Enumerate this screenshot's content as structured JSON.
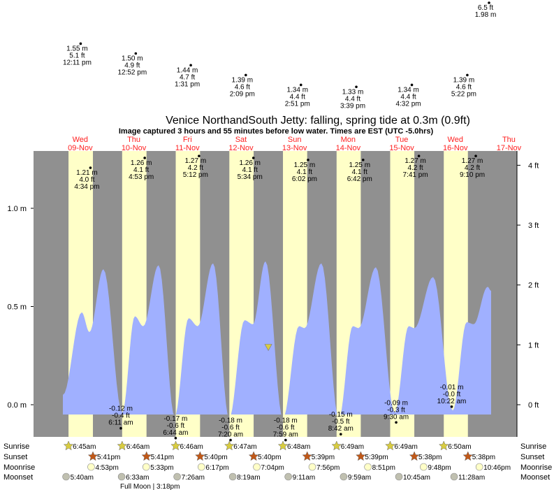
{
  "chart_data": {
    "type": "area",
    "title": "Venice NorthandSouth Jetty: falling, spring tide at 0.3m (0.9ft)",
    "subtitle": "Image captured 3 hours and 55 minutes before low water. Times are EST (UTC -5.0hrs)",
    "days": [
      {
        "dow": "Wed",
        "date": "09-Nov"
      },
      {
        "dow": "Thu",
        "date": "10-Nov"
      },
      {
        "dow": "Fri",
        "date": "11-Nov"
      },
      {
        "dow": "Sat",
        "date": "12-Nov"
      },
      {
        "dow": "Sun",
        "date": "13-Nov"
      },
      {
        "dow": "Mon",
        "date": "14-Nov"
      },
      {
        "dow": "Tue",
        "date": "15-Nov"
      },
      {
        "dow": "Wed",
        "date": "16-Nov"
      },
      {
        "dow": "Thu",
        "date": "17-Nov"
      }
    ],
    "left_axis": {
      "unit": "m",
      "ticks": [
        "0.0 m",
        "0.5 m",
        "1.0 m"
      ],
      "values": [
        0,
        0.5,
        1.0
      ],
      "ylim": [
        -0.16,
        1.29
      ]
    },
    "right_axis": {
      "unit": "ft",
      "ticks": [
        "0 ft",
        "1 ft",
        "2 ft",
        "3 ft",
        "4 ft"
      ],
      "values": [
        0,
        1,
        2,
        3,
        4
      ]
    },
    "colors": {
      "night": "#909090",
      "day": "#ffffc8",
      "water": "#a0b0ff",
      "day_labels": "#ff2020",
      "sunrise": "#d8cc40",
      "sunset": "#c05818",
      "moonrise": "#ffffc8",
      "moonset": "#c0c0b0"
    },
    "curve": [
      [
        "09-Nov",
        "4:13 am",
        0.05
      ],
      [
        "09-Nov",
        "12:40 pm",
        0.47
      ],
      [
        "09-Nov",
        "4:06 pm",
        0.37
      ],
      [
        "09-Nov",
        "10:22 pm",
        0.69
      ],
      [
        "10-Nov",
        "6:49 am",
        -0.04
      ],
      [
        "10-Nov",
        "12:27 pm",
        0.45
      ],
      [
        "10-Nov",
        "4:12 pm",
        0.4
      ],
      [
        "10-Nov",
        "11:05 pm",
        0.71
      ],
      [
        "11-Nov",
        "6:17 am",
        -0.06
      ],
      [
        "11-Nov",
        "12:33 pm",
        0.44
      ],
      [
        "11-Nov",
        "4:37 pm",
        0.4
      ],
      [
        "11-Nov",
        "11:30 pm",
        0.72
      ],
      [
        "12-Nov",
        "6:42 am",
        -0.07
      ],
      [
        "12-Nov",
        "1:35 pm",
        0.43
      ],
      [
        "12-Nov",
        "5:20 pm",
        0.41
      ],
      [
        "12-Nov",
        "10:58 pm",
        0.73
      ],
      [
        "13-Nov",
        "6:48 am",
        -0.07
      ],
      [
        "13-Nov",
        "2:00 pm",
        0.4
      ],
      [
        "13-Nov",
        "4:30 pm",
        0.39
      ],
      [
        "14-Nov",
        "12:00 am",
        0.72
      ],
      [
        "14-Nov",
        "7:50 am",
        -0.07
      ],
      [
        "14-Nov",
        "2:05 pm",
        0.4
      ],
      [
        "14-Nov",
        "4:40 pm",
        0.39
      ],
      [
        "15-Nov",
        "12:25 am",
        0.7
      ],
      [
        "15-Nov",
        "8:51 am",
        -0.04
      ],
      [
        "15-Nov",
        "3:07 pm",
        0.4
      ],
      [
        "15-Nov",
        "5:40 pm",
        0.39
      ],
      [
        "16-Nov",
        "2:04 am",
        0.65
      ],
      [
        "16-Nov",
        "10:50 am",
        -0.03
      ],
      [
        "16-Nov",
        "5:05 pm",
        0.42
      ],
      [
        "16-Nov",
        "8:12 pm",
        0.41
      ],
      [
        "17-Nov",
        "2:28 am",
        0.6
      ],
      [
        "17-Nov",
        "4:02 am",
        0.58
      ]
    ],
    "tide_labels": [
      {
        "day": "09-Nov",
        "time": "4:34 pm",
        "ft": "4.0 ft",
        "m": "1.21 m",
        "value": 1.21,
        "kind": "high"
      },
      {
        "day": "10-Nov",
        "time": "4:53 pm",
        "ft": "4.1 ft",
        "m": "1.26 m",
        "value": 1.26,
        "kind": "high"
      },
      {
        "day": "11-Nov",
        "time": "5:12 pm",
        "ft": "4.2 ft",
        "m": "1.27 m",
        "value": 1.27,
        "kind": "high"
      },
      {
        "day": "12-Nov",
        "time": "5:34 pm",
        "ft": "4.1 ft",
        "m": "1.26 m",
        "value": 1.26,
        "kind": "high"
      },
      {
        "day": "13-Nov",
        "time": "6:02 pm",
        "ft": "4.1 ft",
        "m": "1.25 m",
        "value": 1.25,
        "kind": "high"
      },
      {
        "day": "14-Nov",
        "time": "6:42 pm",
        "ft": "4.1 ft",
        "m": "1.25 m",
        "value": 1.25,
        "kind": "high"
      },
      {
        "day": "15-Nov",
        "time": "7:41 pm",
        "ft": "4.2 ft",
        "m": "1.27 m",
        "value": 1.27,
        "kind": "high"
      },
      {
        "day": "16-Nov",
        "time": "9:10 pm",
        "ft": "4.2 ft",
        "m": "1.27 m",
        "value": 1.27,
        "kind": "high"
      },
      {
        "day": "09-Nov",
        "time": "12:11 pm",
        "ft": "5.1 ft",
        "m": "1.55 m",
        "value": 1.55,
        "kind": "high"
      },
      {
        "day": "10-Nov",
        "time": "12:52 pm",
        "ft": "4.9 ft",
        "m": "1.50 m",
        "value": 1.5,
        "kind": "high"
      },
      {
        "day": "11-Nov",
        "time": "1:31 pm",
        "ft": "4.7 ft",
        "m": "1.44 m",
        "value": 1.44,
        "kind": "high"
      },
      {
        "day": "12-Nov",
        "time": "2:09 pm",
        "ft": "4.6 ft",
        "m": "1.39 m",
        "value": 1.39,
        "kind": "high"
      },
      {
        "day": "13-Nov",
        "time": "2:51 pm",
        "ft": "4.4 ft",
        "m": "1.34 m",
        "value": 1.34,
        "kind": "high"
      },
      {
        "day": "14-Nov",
        "time": "3:39 pm",
        "ft": "4.4 ft",
        "m": "1.33 m",
        "value": 1.33,
        "kind": "high"
      },
      {
        "day": "15-Nov",
        "time": "4:32 pm",
        "ft": "4.4 ft",
        "m": "1.34 m",
        "value": 1.34,
        "kind": "high"
      },
      {
        "day": "16-Nov",
        "time": "5:22 pm",
        "ft": "4.6 ft",
        "m": "1.39 m",
        "value": 1.39,
        "kind": "high"
      },
      {
        "day": "17-Nov",
        "time": "",
        "ft": "6.5 ft",
        "m": "1.98 m",
        "value": 1.98,
        "kind": "high"
      },
      {
        "day": "10-Nov",
        "time": "6:11 am",
        "ft": "-0.4 ft",
        "m": "-0.12 m",
        "value": -0.12,
        "kind": "low"
      },
      {
        "day": "11-Nov",
        "time": "6:44 am",
        "ft": "-0.6 ft",
        "m": "-0.17 m",
        "value": -0.17,
        "kind": "low"
      },
      {
        "day": "12-Nov",
        "time": "7:20 am",
        "ft": "-0.6 ft",
        "m": "-0.18 m",
        "value": -0.18,
        "kind": "low"
      },
      {
        "day": "13-Nov",
        "time": "7:59 am",
        "ft": "-0.6 ft",
        "m": "-0.18 m",
        "value": -0.18,
        "kind": "low"
      },
      {
        "day": "14-Nov",
        "time": "8:42 am",
        "ft": "-0.5 ft",
        "m": "-0.15 m",
        "value": -0.15,
        "kind": "low"
      },
      {
        "day": "15-Nov",
        "time": "9:30 am",
        "ft": "-0.3 ft",
        "m": "-0.09 m",
        "value": -0.09,
        "kind": "low"
      },
      {
        "day": "16-Nov",
        "time": "10:22 am",
        "ft": "-0.0 ft",
        "m": "-0.01 m",
        "value": -0.01,
        "kind": "low"
      }
    ],
    "current_marker": {
      "day": "13-Nov",
      "time": "12:15 am",
      "value": 0.29
    },
    "rows": {
      "labels": {
        "sunrise": "Sunrise",
        "sunset": "Sunset",
        "moonrise": "Moonrise",
        "moonset": "Moonset"
      },
      "sunrise": [
        "6:45am",
        "6:46am",
        "6:46am",
        "6:47am",
        "6:48am",
        "6:49am",
        "6:49am",
        "6:50am"
      ],
      "sunset": [
        "5:41pm",
        "5:41pm",
        "5:40pm",
        "5:40pm",
        "5:39pm",
        "5:39pm",
        "5:38pm",
        "5:38pm"
      ],
      "moonrise": [
        "4:53pm",
        "5:33pm",
        "6:17pm",
        "7:04pm",
        "7:56pm",
        "8:51pm",
        "9:48pm",
        "10:46pm"
      ],
      "moonset": [
        "5:40am",
        "6:33am",
        "7:26am",
        "8:19am",
        "9:11am",
        "9:59am",
        "10:45am",
        "11:28am"
      ]
    },
    "moon_phase": {
      "text": "Full Moon | 3:18pm",
      "day": "10-Nov"
    }
  }
}
